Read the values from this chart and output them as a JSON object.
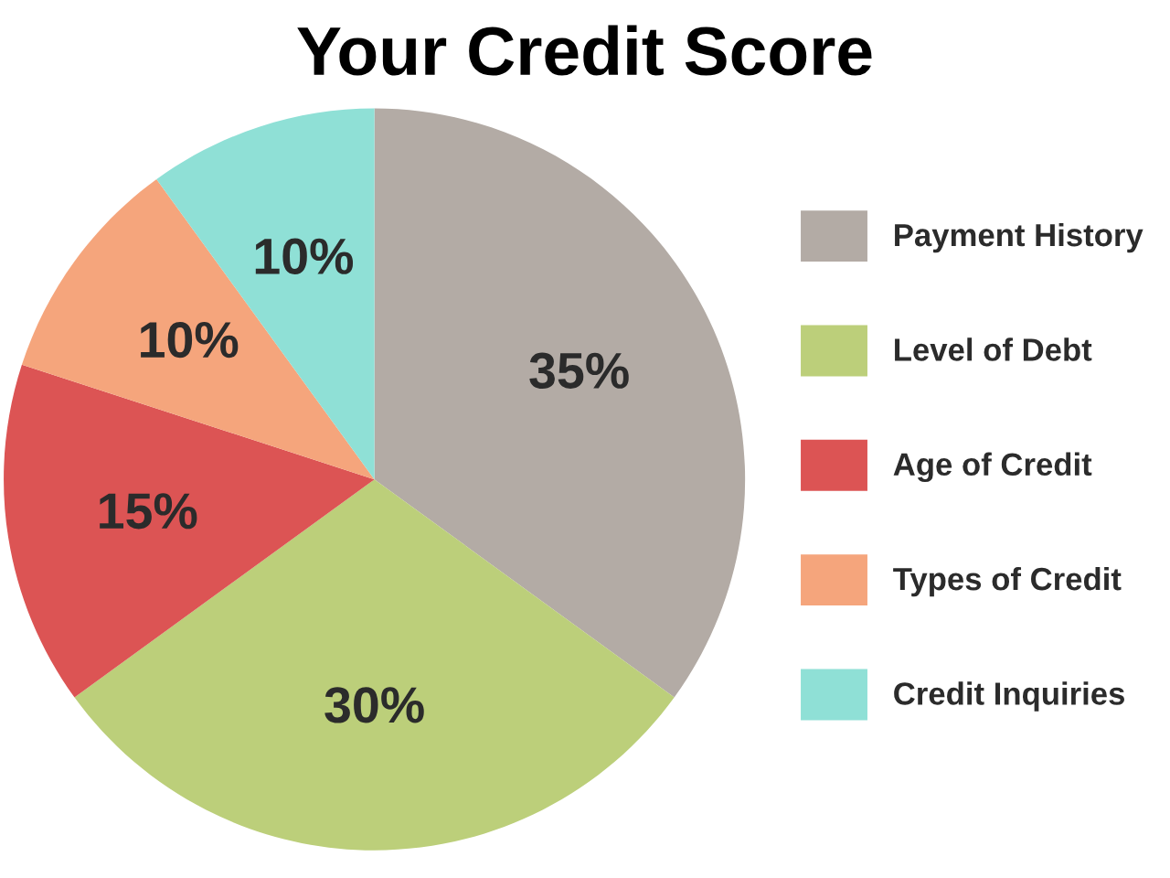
{
  "chart_data": {
    "type": "pie",
    "title": "Your Credit Score",
    "categories": [
      "Payment History",
      "Level of Debt",
      "Age of Credit",
      "Types of Credit",
      "Credit Inquiries"
    ],
    "values": [
      35,
      30,
      15,
      10,
      10
    ],
    "colors": [
      "#b3aba5",
      "#bccf7a",
      "#dc5454",
      "#f5a57c",
      "#8fe0d6"
    ],
    "value_labels": [
      "35%",
      "30%",
      "15%",
      "10%",
      "10%"
    ],
    "legend": "right"
  }
}
